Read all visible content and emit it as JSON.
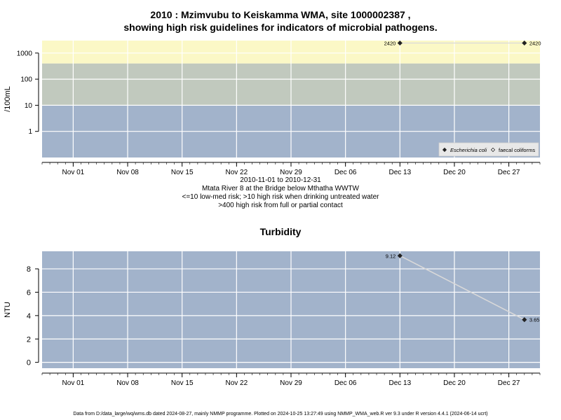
{
  "chart_data": [
    {
      "type": "scatter",
      "title": "2010 : Mzimvubu to Keiskamma WMA, site 1000002387 ,",
      "title2": "showing high risk guidelines for indicators of microbial pathogens.",
      "ylabel": "/100mL",
      "yscale": "log",
      "ylim": [
        0.1,
        3000
      ],
      "yticks": [
        "1",
        "10",
        "100",
        "1000"
      ],
      "xlim": [
        "2010-10-28",
        "2010-12-31"
      ],
      "xticks": [
        "Nov 01",
        "Nov 08",
        "Nov 15",
        "Nov 22",
        "Nov 29",
        "Dec 06",
        "Dec 13",
        "Dec 20",
        "Dec 27"
      ],
      "bands": [
        {
          "from": 0.1,
          "to": 10,
          "color": "#a2b3cb"
        },
        {
          "from": 10,
          "to": 400,
          "color": "#c1c9be"
        },
        {
          "from": 400,
          "to": 3000,
          "color": "#fbf8c6"
        }
      ],
      "series": [
        {
          "name": "Escherichia coli",
          "marker": "filled-diamond",
          "color": "#333333",
          "x": [
            "2010-12-13",
            "2010-12-29"
          ],
          "y": [
            2420,
            2420
          ],
          "labels": [
            "2420",
            "2420"
          ]
        },
        {
          "name": "faecal coliforms",
          "marker": "open-diamond",
          "color": "#333333",
          "x": [],
          "y": [],
          "labels": []
        }
      ],
      "legend": "bottom-right",
      "grid": true,
      "caption": [
        "2010-11-01 to 2010-12-31",
        "Mtata River 8 at the Bridge below Mthatha WWTW",
        "<=10 low-med risk; >10 high risk when drinking untreated water",
        ">400 high risk from full or partial contact"
      ]
    },
    {
      "type": "line",
      "title": "Turbidity",
      "ylabel": "NTU",
      "ylim": [
        -0.5,
        9.5
      ],
      "yticks": [
        0,
        2,
        4,
        6,
        8
      ],
      "xlim": [
        "2010-10-28",
        "2010-12-31"
      ],
      "xticks": [
        "Nov 01",
        "Nov 08",
        "Nov 15",
        "Nov 22",
        "Nov 29",
        "Dec 06",
        "Dec 13",
        "Dec 20",
        "Dec 27"
      ],
      "background": "#a2b3cb",
      "grid": true,
      "series": [
        {
          "x": [
            "2010-12-13",
            "2010-12-29"
          ],
          "y": [
            9.12,
            3.65
          ],
          "labels": [
            "9.12",
            "3.65"
          ],
          "color": "#333333"
        }
      ]
    }
  ],
  "caption_lines": [
    "2010-11-01 to 2010-12-31",
    "Mtata River 8 at the Bridge below Mthatha WWTW",
    "<=10 low-med risk; >10 high risk when drinking untreated water",
    ">400 high risk from full or partial contact"
  ],
  "footer": "Data from D:/data_large/wq/wms.db dated 2024-08-27, mainly NMMP programme. Plotted on 2024-10-25 13:27:49 using NMMP_WMA_web.R ver 9.3 under R version 4.4.1 (2024-06-14 ucrt)"
}
